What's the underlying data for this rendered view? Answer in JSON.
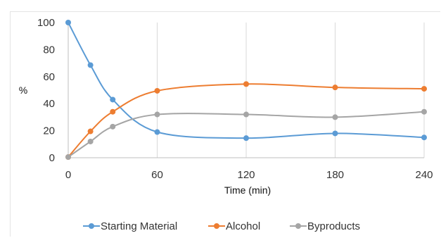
{
  "chart_data": {
    "type": "line",
    "xlabel": "Time (min)",
    "ylabel": "%",
    "x_ticks": [
      0,
      60,
      120,
      180,
      240
    ],
    "y_ticks": [
      0,
      20,
      40,
      60,
      80,
      100
    ],
    "xlim": [
      0,
      240
    ],
    "ylim": [
      0,
      100
    ],
    "grid": "vertical",
    "legend_position": "bottom",
    "smooth": true,
    "series": [
      {
        "name": "Starting Material",
        "color": "#5b9bd5",
        "points": [
          [
            0,
            100
          ],
          [
            15,
            68.5
          ],
          [
            30,
            43
          ],
          [
            60,
            19
          ],
          [
            120,
            14.5
          ],
          [
            180,
            18
          ],
          [
            240,
            15
          ]
        ]
      },
      {
        "name": "Alcohol",
        "color": "#ed7d31",
        "points": [
          [
            0,
            0.5
          ],
          [
            15,
            19.5
          ],
          [
            30,
            34
          ],
          [
            60,
            49.5
          ],
          [
            120,
            54.5
          ],
          [
            180,
            52
          ],
          [
            240,
            51
          ]
        ]
      },
      {
        "name": "Byproducts",
        "color": "#a5a5a5",
        "points": [
          [
            0,
            0.5
          ],
          [
            15,
            12
          ],
          [
            30,
            23
          ],
          [
            60,
            32
          ],
          [
            120,
            32
          ],
          [
            180,
            30
          ],
          [
            240,
            34
          ]
        ]
      }
    ]
  }
}
